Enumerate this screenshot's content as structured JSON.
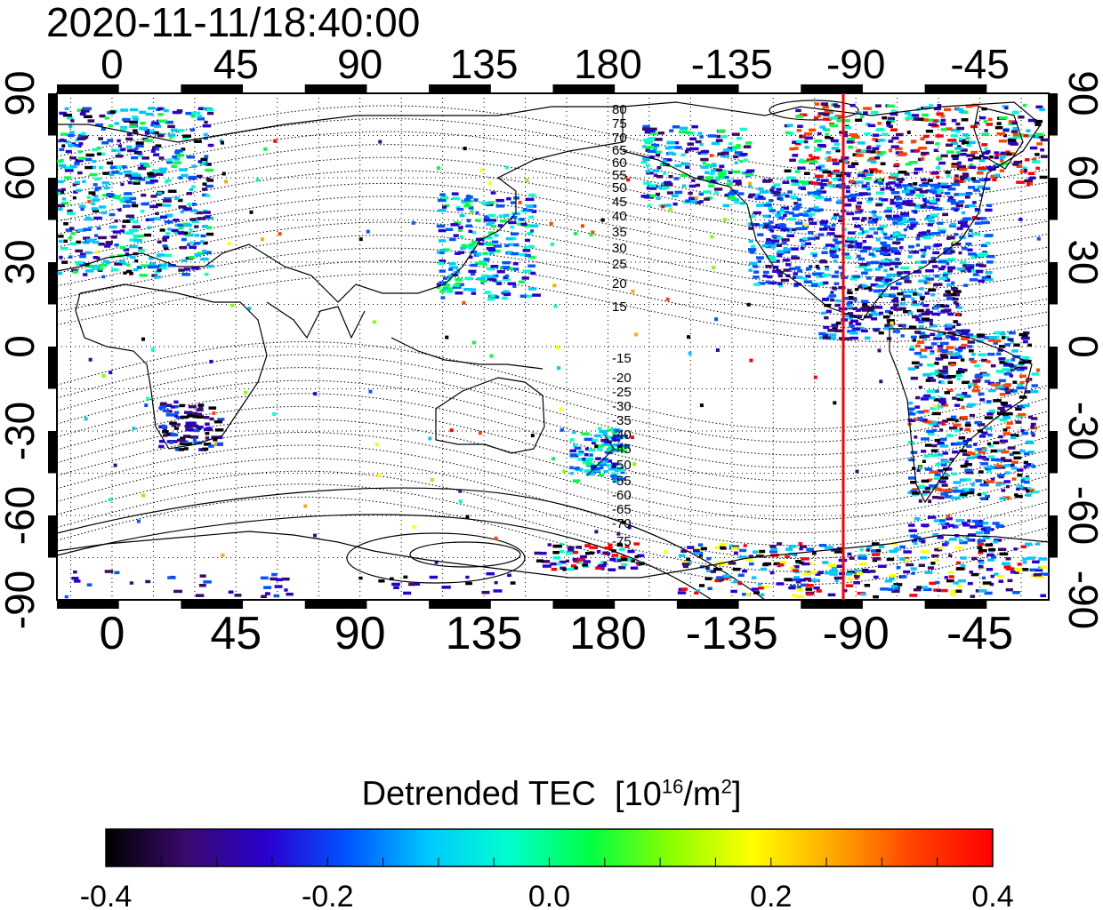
{
  "title": "2020-11-11/18:40:00",
  "map": {
    "lon_ticks": [
      "0",
      "45",
      "90",
      "135",
      "180",
      "-135",
      "-90",
      "-45"
    ],
    "lat_ticks": [
      "90",
      "60",
      "30",
      "0",
      "-30",
      "-60",
      "-90"
    ],
    "north_contour_labels": [
      "80",
      "75",
      "70",
      "65",
      "60",
      "55",
      "50",
      "45",
      "40",
      "35",
      "30",
      "25",
      "20",
      "15"
    ],
    "south_contour_labels": [
      "-15",
      "-20",
      "-25",
      "-30",
      "-35",
      "-40",
      "-45",
      "-50",
      "-55",
      "-60",
      "-65",
      "-70",
      "-75"
    ],
    "terminator_color": "#ff0000",
    "terminator_longitude": -100
  },
  "colorbar": {
    "label": "Detrended TEC",
    "unit_prefix": "[10",
    "unit_exp1": "16",
    "unit_mid": "/m",
    "unit_exp2": "2",
    "unit_suffix": "]",
    "ticks": [
      "-0.4",
      "-0.2",
      "0.0",
      "0.2",
      "0.4"
    ],
    "min": -0.4,
    "max": 0.4,
    "colors": [
      "#000000",
      "#3a0a6e",
      "#2a00d0",
      "#0055ff",
      "#00c8ff",
      "#00ffcc",
      "#00ff44",
      "#88ff00",
      "#ffff00",
      "#ffaa00",
      "#ff4400",
      "#ff0000"
    ]
  }
}
